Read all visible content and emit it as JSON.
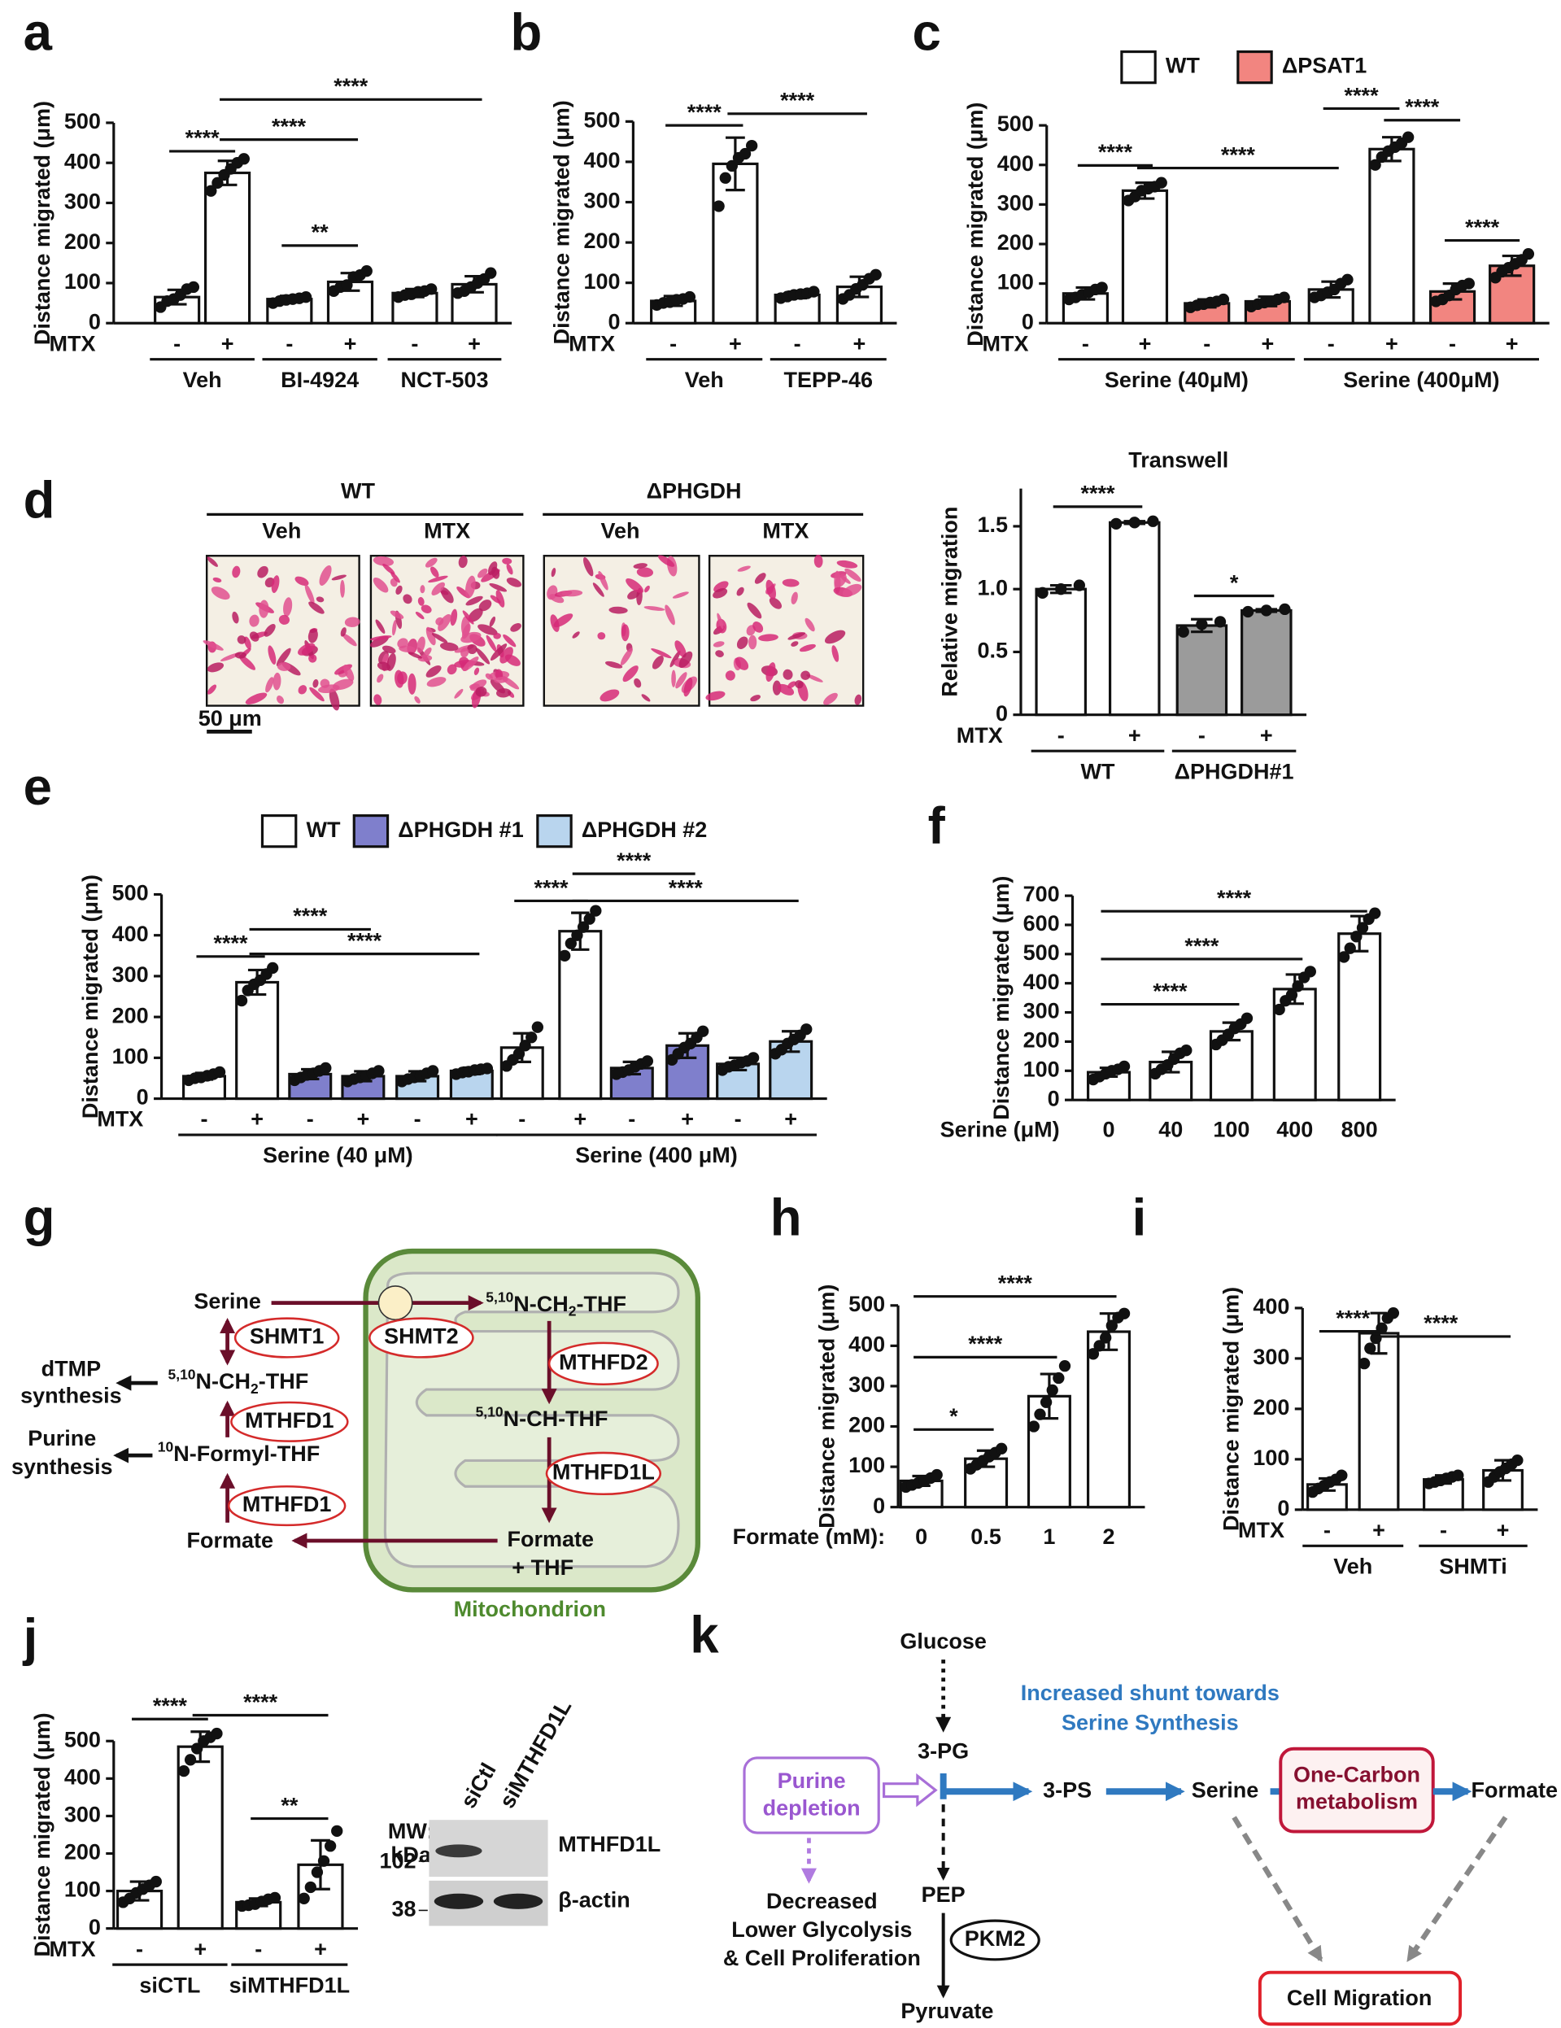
{
  "chart_data": [
    {
      "type": "bar",
      "panel": "a",
      "ylabel": "Distance migrated (μm)",
      "ylim": [
        0,
        500
      ],
      "yticks": [
        0,
        100,
        200,
        300,
        400,
        500
      ],
      "color": "#ffffff",
      "row_label": "MTX",
      "categories": [
        "-",
        "+",
        "-",
        "+",
        "-",
        "+"
      ],
      "values": [
        65,
        375,
        60,
        103,
        75,
        97
      ],
      "errors": [
        18,
        30,
        8,
        22,
        10,
        20
      ],
      "points": [
        [
          40,
          55,
          60,
          70,
          85,
          90
        ],
        [
          330,
          350,
          370,
          385,
          400,
          410
        ],
        [
          50,
          55,
          58,
          60,
          62,
          65
        ],
        [
          80,
          90,
          95,
          115,
          120,
          130
        ],
        [
          65,
          70,
          72,
          78,
          80,
          85
        ],
        [
          75,
          80,
          90,
          100,
          110,
          125
        ]
      ],
      "groups": [
        {
          "label": "Veh",
          "bars": [
            0,
            1
          ]
        },
        {
          "label": "BI-4924",
          "bars": [
            2,
            3
          ]
        },
        {
          "label": "NCT-503",
          "bars": [
            4,
            5
          ]
        }
      ],
      "sig": [
        {
          "label": "****",
          "bars": [
            0,
            1
          ]
        },
        {
          "label": "****",
          "bars": [
            1,
            3
          ]
        },
        {
          "label": "**",
          "bars": [
            2,
            3
          ]
        },
        {
          "label": "****",
          "bars": [
            1,
            5
          ]
        }
      ]
    },
    {
      "type": "bar",
      "panel": "b",
      "ylabel": "Distance migrated (μm)",
      "ylim": [
        0,
        500
      ],
      "yticks": [
        0,
        100,
        200,
        300,
        400,
        500
      ],
      "color": "#ffffff",
      "row_label": "MTX",
      "categories": [
        "-",
        "+",
        "-",
        "+"
      ],
      "values": [
        55,
        395,
        70,
        90
      ],
      "errors": [
        12,
        65,
        8,
        25
      ],
      "points": [
        [
          45,
          50,
          52,
          58,
          60,
          65
        ],
        [
          290,
          360,
          390,
          410,
          420,
          440
        ],
        [
          62,
          66,
          70,
          72,
          74,
          78
        ],
        [
          60,
          70,
          85,
          95,
          110,
          120
        ]
      ],
      "groups": [
        {
          "label": "Veh",
          "bars": [
            0,
            1
          ]
        },
        {
          "label": "TEPP-46",
          "bars": [
            2,
            3
          ]
        }
      ],
      "sig": [
        {
          "label": "****",
          "bars": [
            0,
            1
          ]
        },
        {
          "label": "****",
          "bars": [
            1,
            3
          ]
        }
      ]
    },
    {
      "type": "bar",
      "panel": "c",
      "ylabel": "Distance migrated (μm)",
      "ylim": [
        0,
        500
      ],
      "yticks": [
        0,
        100,
        200,
        300,
        400,
        500
      ],
      "legend": [
        {
          "name": "WT",
          "color": "#ffffff"
        },
        {
          "name": "ΔPSAT1",
          "color": "#f28580"
        }
      ],
      "bar_colors": [
        "#ffffff",
        "#ffffff",
        "#f28580",
        "#f28580",
        "#ffffff",
        "#ffffff",
        "#f28580",
        "#f28580"
      ],
      "row_label": "MTX",
      "categories": [
        "-",
        "+",
        "-",
        "+",
        "-",
        "+",
        "-",
        "+"
      ],
      "values": [
        75,
        335,
        50,
        55,
        85,
        440,
        80,
        145
      ],
      "errors": [
        15,
        20,
        10,
        12,
        20,
        30,
        20,
        25
      ],
      "points": [
        [
          60,
          65,
          72,
          78,
          85,
          90
        ],
        [
          310,
          320,
          335,
          340,
          345,
          355
        ],
        [
          40,
          45,
          48,
          52,
          55,
          60
        ],
        [
          42,
          48,
          52,
          55,
          60,
          65
        ],
        [
          65,
          70,
          78,
          85,
          100,
          110
        ],
        [
          400,
          420,
          435,
          445,
          455,
          470
        ],
        [
          55,
          60,
          70,
          85,
          95,
          100
        ],
        [
          115,
          130,
          140,
          150,
          160,
          175
        ]
      ],
      "groups": [
        {
          "label": "Serine (40μM)",
          "bars": [
            0,
            3
          ]
        },
        {
          "label": "Serine (400μM)",
          "bars": [
            4,
            7
          ]
        }
      ],
      "sig": [
        {
          "label": "****",
          "bars": [
            0,
            1
          ]
        },
        {
          "label": "****",
          "bars": [
            1,
            4
          ]
        },
        {
          "label": "****",
          "bars": [
            4,
            5
          ]
        },
        {
          "label": "****",
          "bars": [
            5,
            6
          ]
        },
        {
          "label": "****",
          "bars": [
            6,
            7
          ]
        }
      ]
    },
    {
      "type": "bar",
      "title": "Transwell",
      "ylabel": "Relative migration",
      "ylim": [
        0,
        1.8
      ],
      "yticks": [
        0,
        0.5,
        {
          "value": 1,
          "label": "1.0"
        },
        1.5
      ],
      "bar_colors": [
        "#ffffff",
        "#ffffff",
        "#9b9b9b",
        "#9b9b9b"
      ],
      "row_label": "MTX",
      "categories": [
        "-",
        "+",
        "-",
        "+"
      ],
      "values": [
        1.0,
        1.53,
        0.71,
        0.83
      ],
      "errors": [
        0.03,
        0.01,
        0.05,
        0.01
      ],
      "points": [
        [
          0.97,
          1.0,
          1.03
        ],
        [
          1.52,
          1.53,
          1.54
        ],
        [
          0.66,
          0.72,
          0.74
        ],
        [
          0.82,
          0.83,
          0.84
        ]
      ],
      "groups": [
        {
          "label": "WT",
          "bars": [
            0,
            1
          ]
        },
        {
          "label": "ΔPHGDH#1",
          "bars": [
            2,
            3
          ]
        }
      ],
      "sig": [
        {
          "label": "****",
          "bars": [
            0,
            1
          ]
        },
        {
          "label": "*",
          "bars": [
            2,
            3
          ]
        }
      ]
    },
    {
      "type": "bar",
      "panel": "e",
      "ylabel": "Distance migrated (μm)",
      "ylim": [
        0,
        500
      ],
      "yticks": [
        0,
        100,
        200,
        300,
        400,
        500
      ],
      "legend": [
        {
          "name": "WT",
          "color": "#ffffff"
        },
        {
          "name": "ΔPHGDH #1",
          "color": "#7f7fcc"
        },
        {
          "name": "ΔPHGDH #2",
          "color": "#b9d5ee"
        }
      ],
      "bar_colors": [
        "#ffffff",
        "#ffffff",
        "#7f7fcc",
        "#7f7fcc",
        "#b9d5ee",
        "#b9d5ee",
        "#ffffff",
        "#ffffff",
        "#7f7fcc",
        "#7f7fcc",
        "#b9d5ee",
        "#b9d5ee"
      ],
      "row_label": "MTX",
      "categories": [
        "-",
        "+",
        "-",
        "+",
        "-",
        "+",
        "-",
        "+",
        "-",
        "+",
        "-",
        "+"
      ],
      "values": [
        55,
        285,
        60,
        55,
        55,
        68,
        125,
        410,
        75,
        130,
        85,
        140
      ],
      "errors": [
        8,
        30,
        12,
        12,
        12,
        8,
        35,
        45,
        15,
        30,
        15,
        25
      ],
      "points": [
        [
          45,
          50,
          52,
          56,
          60,
          65
        ],
        [
          240,
          265,
          280,
          290,
          305,
          320
        ],
        [
          45,
          52,
          58,
          62,
          68,
          75
        ],
        [
          42,
          48,
          52,
          56,
          62,
          68
        ],
        [
          42,
          48,
          52,
          56,
          62,
          68
        ],
        [
          60,
          64,
          66,
          70,
          72,
          74
        ],
        [
          80,
          95,
          110,
          130,
          150,
          175
        ],
        [
          350,
          380,
          400,
          420,
          440,
          460
        ],
        [
          60,
          65,
          70,
          78,
          85,
          92
        ],
        [
          95,
          110,
          125,
          135,
          150,
          165
        ],
        [
          70,
          78,
          82,
          88,
          92,
          100
        ],
        [
          110,
          120,
          135,
          145,
          155,
          170
        ]
      ],
      "groups": [
        {
          "label": "Serine (40 μM)",
          "bars": [
            0,
            5
          ]
        },
        {
          "label": "Serine (400 μM)",
          "bars": [
            6,
            11
          ]
        }
      ],
      "sig": [
        {
          "label": "****",
          "bars": [
            0,
            1
          ]
        },
        {
          "label": "****",
          "bars": [
            1,
            3
          ]
        },
        {
          "label": "****",
          "bars": [
            1,
            5
          ]
        },
        {
          "label": "****",
          "bars": [
            6,
            7
          ]
        },
        {
          "label": "****",
          "bars": [
            7,
            9
          ]
        },
        {
          "label": "****",
          "bars": [
            7,
            11
          ]
        }
      ]
    },
    {
      "type": "bar",
      "panel": "f",
      "ylabel": "Distance migrated (μm)",
      "ylim": [
        0,
        700
      ],
      "yticks": [
        0,
        100,
        200,
        300,
        400,
        500,
        600,
        700
      ],
      "color": "#ffffff",
      "xlabel": "Serine (μM)",
      "categories": [
        "0",
        "40",
        "100",
        "400",
        "800"
      ],
      "values": [
        95,
        130,
        235,
        380,
        570
      ],
      "errors": [
        15,
        35,
        30,
        50,
        60
      ],
      "points": [
        [
          70,
          80,
          90,
          100,
          105,
          115
        ],
        [
          90,
          105,
          120,
          140,
          160,
          170
        ],
        [
          190,
          205,
          225,
          245,
          260,
          280
        ],
        [
          310,
          340,
          360,
          390,
          420,
          440
        ],
        [
          490,
          520,
          560,
          590,
          620,
          640
        ]
      ],
      "sig": [
        {
          "label": "****",
          "bars": [
            0,
            2
          ]
        },
        {
          "label": "****",
          "bars": [
            0,
            3
          ]
        },
        {
          "label": "****",
          "bars": [
            0,
            4
          ]
        }
      ]
    },
    {
      "type": "bar",
      "panel": "h",
      "ylabel": "Distance migrated (μm)",
      "ylim": [
        0,
        500
      ],
      "yticks": [
        0,
        100,
        200,
        300,
        400,
        500
      ],
      "color": "#ffffff",
      "xlabel": "Formate (mM):",
      "categories": [
        "0",
        "0.5",
        "1",
        "2"
      ],
      "values": [
        65,
        120,
        275,
        435
      ],
      "errors": [
        12,
        20,
        55,
        45
      ],
      "points": [
        [
          50,
          55,
          60,
          65,
          72,
          80
        ],
        [
          95,
          105,
          115,
          125,
          135,
          145
        ],
        [
          200,
          230,
          260,
          290,
          320,
          350
        ],
        [
          380,
          400,
          420,
          450,
          470,
          480
        ]
      ],
      "sig": [
        {
          "label": "*",
          "bars": [
            0,
            1
          ]
        },
        {
          "label": "****",
          "bars": [
            0,
            2
          ]
        },
        {
          "label": "****",
          "bars": [
            0,
            3
          ]
        }
      ]
    },
    {
      "type": "bar",
      "panel": "i",
      "ylabel": "Distance migrated (μm)",
      "ylim": [
        0,
        400
      ],
      "yticks": [
        0,
        100,
        200,
        300,
        400
      ],
      "color": "#ffffff",
      "row_label": "MTX",
      "categories": [
        "-",
        "+",
        "-",
        "+"
      ],
      "values": [
        50,
        350,
        60,
        78
      ],
      "errors": [
        12,
        40,
        8,
        20
      ],
      "points": [
        [
          35,
          42,
          48,
          55,
          60,
          68
        ],
        [
          290,
          320,
          340,
          360,
          380,
          390
        ],
        [
          52,
          55,
          58,
          62,
          65,
          68
        ],
        [
          55,
          65,
          75,
          82,
          90,
          98
        ]
      ],
      "groups": [
        {
          "label": "Veh",
          "bars": [
            0,
            1
          ]
        },
        {
          "label": "SHMTi",
          "bars": [
            2,
            3
          ]
        }
      ],
      "sig": [
        {
          "label": "****",
          "bars": [
            0,
            1
          ]
        },
        {
          "label": "****",
          "bars": [
            1,
            3
          ]
        }
      ]
    },
    {
      "type": "bar",
      "panel": "j",
      "ylabel": "Distance migrated (μm)",
      "ylim": [
        0,
        500
      ],
      "yticks": [
        0,
        100,
        200,
        300,
        400,
        500
      ],
      "color": "#ffffff",
      "row_label": "MTX",
      "categories": [
        "-",
        "+",
        "-",
        "+"
      ],
      "values": [
        100,
        485,
        70,
        170
      ],
      "errors": [
        25,
        40,
        10,
        65
      ],
      "points": [
        [
          70,
          80,
          95,
          105,
          115,
          125
        ],
        [
          420,
          450,
          480,
          500,
          510,
          520
        ],
        [
          60,
          62,
          65,
          72,
          78,
          82
        ],
        [
          80,
          110,
          150,
          180,
          220,
          260
        ]
      ],
      "groups": [
        {
          "label": "siCTL",
          "bars": [
            0,
            1
          ]
        },
        {
          "label": "siMTHFD1L",
          "bars": [
            2,
            3
          ]
        }
      ],
      "sig": [
        {
          "label": "****",
          "bars": [
            0,
            1
          ]
        },
        {
          "label": "****",
          "bars": [
            1,
            3
          ]
        },
        {
          "label": "**",
          "bars": [
            2,
            3
          ]
        }
      ]
    }
  ],
  "panel_d": {
    "panel": "d",
    "genotypes": [
      "WT",
      "ΔPHGDH"
    ],
    "conditions": [
      "Veh",
      "MTX",
      "Veh",
      "MTX"
    ],
    "scale_bar": "50 μm"
  },
  "blot": {
    "mw": [
      "MW:",
      "kDa"
    ],
    "markers": [
      102,
      38
    ],
    "lanes": [
      "siCtl",
      "siMTHFD1L"
    ],
    "proteins": [
      "MTHFD1L",
      "β-actin"
    ]
  },
  "diagram_g": {
    "panel": "g",
    "serine": "Serine",
    "shmt1": "SHMT1",
    "shmt2": "SHMT2",
    "mthfd1": [
      "MTHFD1",
      "MTHFD1"
    ],
    "mthfd2": "MTHFD2",
    "mthfd1l": "MTHFD1L",
    "cyto_ch2": [
      "5,10",
      "N-CH",
      "2",
      "-THF"
    ],
    "mito_ch2": [
      "5,10",
      "N-CH",
      "2",
      "-THF"
    ],
    "mito_ch": [
      "5,10",
      "N-CH-THF"
    ],
    "formyl": [
      "10",
      "N-Formyl-THF"
    ],
    "dtmp": [
      "dTMP",
      "synthesis"
    ],
    "purine": [
      "Purine",
      "synthesis"
    ],
    "formate": "Formate",
    "formate_mito": [
      "Formate",
      "+ THF"
    ],
    "compartment": "Mitochondrion"
  },
  "diagram_k": {
    "panel": "k",
    "glucose": "Glucose",
    "pg": "3-PG",
    "shunt": [
      "Increased shunt towards",
      "Serine Synthesis"
    ],
    "purine_box": [
      "Purine",
      "depletion"
    ],
    "ps": "3-PS",
    "serine": "Serine",
    "one_carbon": [
      "One-Carbon",
      "metabolism"
    ],
    "formate": "Formate",
    "decreased": [
      "Decreased",
      "Lower Glycolysis",
      "& Cell Proliferation"
    ],
    "pep": "PEP",
    "pkm2": "PKM2",
    "pyruvate": "Pyruvate",
    "migration": "Cell Migration"
  }
}
